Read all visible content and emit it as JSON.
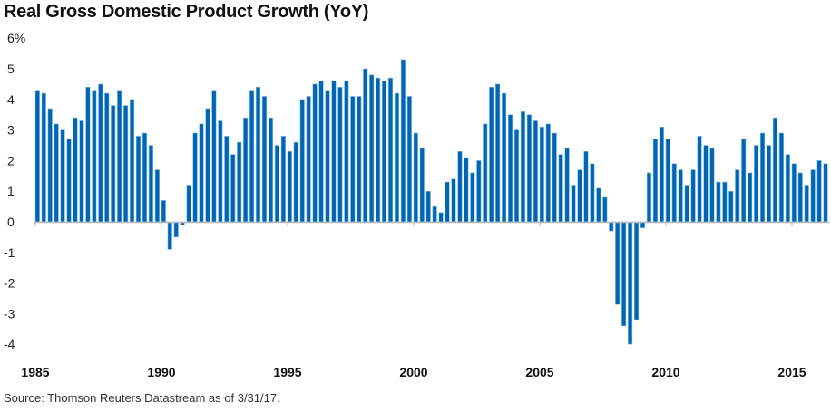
{
  "chart_data": {
    "type": "bar",
    "title": "Real Gross Domestic Product Growth (YoY)",
    "source": "Source: Thomson Reuters Datastream as of 3/31/17.",
    "xlabel": "",
    "ylabel": "",
    "ylim": [
      -4.3,
      6
    ],
    "y_ticks": [
      {
        "value": 6,
        "label": "6%"
      },
      {
        "value": 5,
        "label": "5"
      },
      {
        "value": 4,
        "label": "4"
      },
      {
        "value": 3,
        "label": "3"
      },
      {
        "value": 2,
        "label": "2"
      },
      {
        "value": 1,
        "label": "1"
      },
      {
        "value": 0,
        "label": "0"
      },
      {
        "value": -1,
        "label": "-1"
      },
      {
        "value": -2,
        "label": "-2"
      },
      {
        "value": -3,
        "label": "-3"
      },
      {
        "value": -4,
        "label": "-4"
      }
    ],
    "x_ticks": [
      {
        "value": 1985,
        "label": "1985"
      },
      {
        "value": 1990,
        "label": "1990"
      },
      {
        "value": 1995,
        "label": "1995"
      },
      {
        "value": 2000,
        "label": "2000"
      },
      {
        "value": 2005,
        "label": "2005"
      },
      {
        "value": 2010,
        "label": "2010"
      },
      {
        "value": 2015,
        "label": "2015"
      }
    ],
    "grid": false,
    "bar_color": "#0066b3",
    "frequency": "quarterly",
    "start_year": 1985,
    "values": [
      4.3,
      4.2,
      3.7,
      3.2,
      3.0,
      2.7,
      3.4,
      3.3,
      4.4,
      4.3,
      4.5,
      4.2,
      3.8,
      4.3,
      3.8,
      4.0,
      2.8,
      2.9,
      2.5,
      1.7,
      0.7,
      -0.9,
      -0.5,
      -0.1,
      1.2,
      2.9,
      3.2,
      3.7,
      4.3,
      3.3,
      2.8,
      2.2,
      2.6,
      3.4,
      4.3,
      4.4,
      4.1,
      3.4,
      2.5,
      2.8,
      2.3,
      2.6,
      4.0,
      4.1,
      4.5,
      4.6,
      4.3,
      4.6,
      4.4,
      4.6,
      4.1,
      4.1,
      5.0,
      4.8,
      4.7,
      4.6,
      4.7,
      4.2,
      5.3,
      4.1,
      2.9,
      2.4,
      1.0,
      0.5,
      0.3,
      1.3,
      1.4,
      2.3,
      2.1,
      1.6,
      2.0,
      3.2,
      4.4,
      4.5,
      4.2,
      3.5,
      3.0,
      3.6,
      3.5,
      3.3,
      3.1,
      3.2,
      2.9,
      2.2,
      2.4,
      1.2,
      1.7,
      2.3,
      1.9,
      1.1,
      0.8,
      -0.3,
      -2.7,
      -3.4,
      -4.0,
      -3.2,
      -0.2,
      1.6,
      2.7,
      3.1,
      2.7,
      1.9,
      1.7,
      1.2,
      1.7,
      2.8,
      2.5,
      2.4,
      1.3,
      1.3,
      1.0,
      1.7,
      2.7,
      1.6,
      2.5,
      2.9,
      2.5,
      3.4,
      2.9,
      2.2,
      1.9,
      1.6,
      1.2,
      1.7,
      2.0,
      1.9
    ]
  }
}
